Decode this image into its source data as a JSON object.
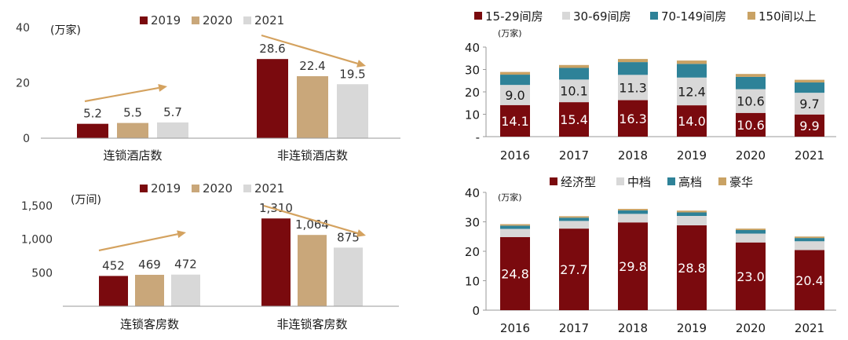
{
  "colors": {
    "c2019": "#7a0a0e",
    "c2020": "#c9a77a",
    "c2021": "#d8d8d8",
    "budget": "#7a0a0e",
    "mid": "#d8d8d8",
    "upscale": "#2e8298",
    "luxury": "#c9a264",
    "arrow": "#d4a25f",
    "axis": "#9a9a9a"
  },
  "chart_data": [
    {
      "id": "hotels",
      "type": "bar",
      "unit": "(万家)",
      "categories": [
        "连锁酒店数",
        "非连锁酒店数"
      ],
      "series": [
        {
          "name": "2019",
          "values": [
            5.2,
            28.6
          ]
        },
        {
          "name": "2020",
          "values": [
            5.5,
            22.4
          ]
        },
        {
          "name": "2021",
          "values": [
            5.7,
            19.5
          ]
        }
      ],
      "data_labels": [
        [
          "5.2",
          "5.5",
          "5.7"
        ],
        [
          "28.6",
          "22.4",
          "19.5"
        ]
      ],
      "ylim": [
        0,
        40
      ],
      "yticks": [
        "0",
        "20",
        "40"
      ],
      "legend": "top"
    },
    {
      "id": "rooms",
      "type": "bar",
      "unit": "(万间)",
      "categories": [
        "连锁客房数",
        "非连锁客房数"
      ],
      "series": [
        {
          "name": "2019",
          "values": [
            452,
            1310
          ]
        },
        {
          "name": "2020",
          "values": [
            469,
            1064
          ]
        },
        {
          "name": "2021",
          "values": [
            472,
            875
          ]
        }
      ],
      "data_labels": [
        [
          "452",
          "469",
          "472"
        ],
        [
          "1,310",
          "1,064",
          "875"
        ]
      ],
      "ylim": [
        0,
        1500
      ],
      "yticks": [
        "",
        "500",
        "1,000",
        "1,500"
      ],
      "legend": "top"
    },
    {
      "id": "by_rooms",
      "type": "bar",
      "stacked": true,
      "unit": "(万家)",
      "categories": [
        "2016",
        "2017",
        "2018",
        "2019",
        "2020",
        "2021"
      ],
      "series": [
        {
          "name": "15-29间房",
          "values": [
            14.1,
            15.4,
            16.3,
            14.0,
            10.6,
            9.9
          ],
          "labels": [
            "14.1",
            "15.4",
            "16.3",
            "14.0",
            "10.6",
            "9.9"
          ]
        },
        {
          "name": "30-69间房",
          "values": [
            9.0,
            10.1,
            11.3,
            12.4,
            10.6,
            9.7
          ],
          "labels": [
            "9.0",
            "10.1",
            "11.3",
            "12.4",
            "10.6",
            "9.7"
          ]
        },
        {
          "name": "70-149间房",
          "values": [
            4.6,
            5.2,
            5.7,
            6.1,
            5.5,
            4.6
          ]
        },
        {
          "name": "150间以上",
          "values": [
            1.2,
            1.3,
            1.4,
            1.5,
            1.3,
            1.2
          ]
        }
      ],
      "ylim": [
        0,
        40
      ],
      "yticks": [
        "-",
        "10",
        "20",
        "30",
        "40"
      ],
      "legend": "top"
    },
    {
      "id": "by_grade",
      "type": "bar",
      "stacked": true,
      "unit": "(万家)",
      "categories": [
        "2016",
        "2017",
        "2018",
        "2019",
        "2020",
        "2021"
      ],
      "series": [
        {
          "name": "经济型",
          "values": [
            24.8,
            27.7,
            29.8,
            28.8,
            23.0,
            20.4
          ],
          "labels": [
            "24.8",
            "27.7",
            "29.8",
            "28.8",
            "23.0",
            "20.4"
          ]
        },
        {
          "name": "中档",
          "values": [
            2.8,
            2.6,
            2.9,
            3.2,
            3.0,
            3.0
          ]
        },
        {
          "name": "高档",
          "values": [
            1.1,
            1.1,
            1.2,
            1.2,
            1.2,
            1.1
          ]
        },
        {
          "name": "豪华",
          "values": [
            0.5,
            0.5,
            0.5,
            0.6,
            0.5,
            0.5
          ]
        }
      ],
      "ylim": [
        0,
        40
      ],
      "yticks": [
        "0",
        "10",
        "20",
        "30",
        "40"
      ],
      "legend": "top"
    }
  ]
}
